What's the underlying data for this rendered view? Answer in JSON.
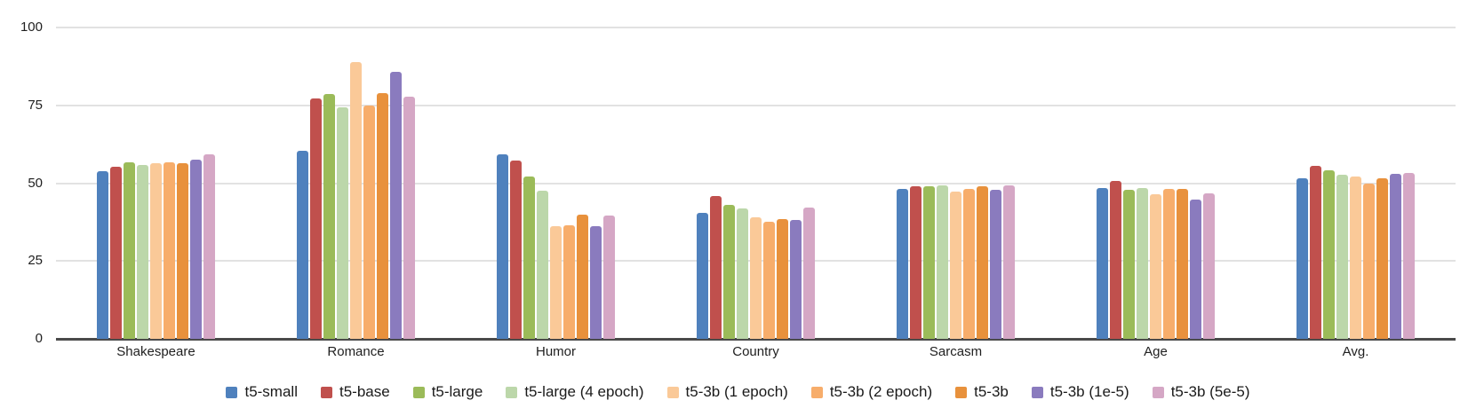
{
  "chart_data": {
    "type": "bar",
    "title": "",
    "xlabel": "",
    "ylabel": "",
    "ylim": [
      0,
      100
    ],
    "yticks": [
      0,
      25,
      50,
      75,
      100
    ],
    "grid": true,
    "legend_position": "bottom",
    "categories": [
      "Shakespeare",
      "Romance",
      "Humor",
      "Country",
      "Sarcasm",
      "Age",
      "Avg."
    ],
    "series": [
      {
        "name": "t5-small",
        "color": "#4F81BD",
        "values": [
          53.9,
          60.5,
          59.4,
          40.6,
          48.1,
          48.4,
          51.5
        ]
      },
      {
        "name": "t5-base",
        "color": "#C0504D",
        "values": [
          55.3,
          77.1,
          57.3,
          45.8,
          49.0,
          50.6,
          55.7
        ]
      },
      {
        "name": "t5-large",
        "color": "#9BBB59",
        "values": [
          56.7,
          78.5,
          52.0,
          43.0,
          48.9,
          47.9,
          54.1
        ]
      },
      {
        "name": "t5-large (4 epoch)",
        "color": "#BCD7AA",
        "values": [
          55.9,
          74.5,
          47.7,
          41.8,
          49.2,
          48.4,
          52.7
        ]
      },
      {
        "name": "t5-3b (1 epoch)",
        "color": "#FAC998",
        "values": [
          56.3,
          88.9,
          36.1,
          38.9,
          47.2,
          46.4,
          52.1
        ]
      },
      {
        "name": "t5-3b (2 epoch)",
        "color": "#F7AD6B",
        "values": [
          56.6,
          74.9,
          36.6,
          37.5,
          48.2,
          48.1,
          50.0
        ]
      },
      {
        "name": "t5-3b",
        "color": "#E8913C",
        "values": [
          56.5,
          79.0,
          39.9,
          38.6,
          48.9,
          48.2,
          51.5
        ]
      },
      {
        "name": "t5-3b (1e-5)",
        "color": "#8A7BBE",
        "values": [
          57.5,
          85.8,
          36.3,
          38.3,
          48.0,
          44.8,
          53.0
        ]
      },
      {
        "name": "t5-3b (5e-5)",
        "color": "#D5A7C5",
        "values": [
          59.2,
          77.7,
          39.7,
          42.2,
          49.3,
          46.8,
          53.3
        ]
      }
    ],
    "axis_colors": {
      "gridline": "#e2e2e2",
      "axis_line": "#4a4a4a",
      "text": "#1f1f1f"
    }
  }
}
